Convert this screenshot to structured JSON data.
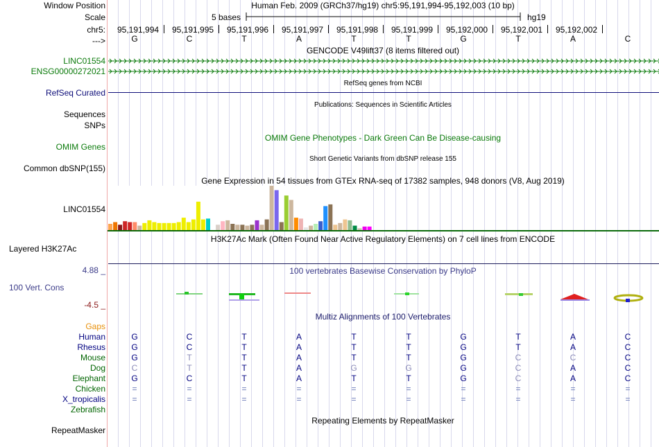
{
  "header": {
    "window_position_label": "Window Position",
    "scale_label": "Scale",
    "chrom_label": "chr5:",
    "strand_label": "--->",
    "title": "Human Feb. 2009 (GRCh37/hg19)   chr5:95,191,994-95,192,003 (10 bp)",
    "scale_text": "5 bases",
    "assembly": "hg19",
    "positions": [
      "95,191,994",
      "95,191,995",
      "95,191,996",
      "95,191,997",
      "95,191,998",
      "95,191,999",
      "95,192,000",
      "95,192,001",
      "95,192,002"
    ],
    "sequence": [
      "G",
      "C",
      "T",
      "A",
      "T",
      "T",
      "G",
      "T",
      "A",
      "C"
    ]
  },
  "tracks": {
    "gencode": {
      "title": "GENCODE V49lift37 (8 items filtered out)",
      "items": [
        "LINC01554",
        "ENSG00000272021"
      ]
    },
    "refseq": {
      "label": "RefSeq Curated",
      "title": "RefSeq genes from NCBI"
    },
    "publications": {
      "label": "Sequences",
      "title": "Publications: Sequences in Scientific Articles"
    },
    "snps_label": "SNPs",
    "omim": {
      "label": "OMIM Genes",
      "title": "OMIM Gene Phenotypes - Dark Green Can Be Disease-causing"
    },
    "dbsnp": {
      "label": "Common dbSNP(155)",
      "title": "Short Genetic Variants from dbSNP release 155"
    },
    "gtex": {
      "label": "LINC01554",
      "title": "Gene Expression in 54 tissues from GTEx RNA-seq of 17382 samples, 948 donors (V8, Aug 2019)"
    },
    "h3k27ac": {
      "label": "Layered H3K27Ac",
      "title": "H3K27Ac Mark (Often Found Near Active Regulatory Elements) on 7 cell lines from ENCODE"
    },
    "phylop": {
      "label": "100 Vert. Cons",
      "title": "100 vertebrates Basewise Conservation by PhyloP",
      "max": "4.88 _",
      "min": "-4.5 _"
    },
    "multiz": {
      "title": "Multiz Alignments of 100 Vertebrates",
      "gaps_label": "Gaps"
    },
    "repeatmasker": {
      "label": "RepeatMasker",
      "title": "Repeating Elements by RepeatMasker"
    }
  },
  "species": [
    {
      "name": "Human",
      "color": "#000080",
      "bases": [
        "G",
        "C",
        "T",
        "A",
        "T",
        "T",
        "G",
        "T",
        "A",
        "C"
      ],
      "faded": [
        0,
        0,
        0,
        0,
        0,
        0,
        0,
        0,
        0,
        0
      ]
    },
    {
      "name": "Rhesus",
      "color": "#000080",
      "bases": [
        "G",
        "C",
        "T",
        "A",
        "T",
        "T",
        "G",
        "T",
        "A",
        "C"
      ],
      "faded": [
        0,
        0,
        0,
        0,
        0,
        0,
        0,
        0,
        0,
        0
      ]
    },
    {
      "name": "Mouse",
      "color": "#006400",
      "bases": [
        "G",
        "T",
        "T",
        "A",
        "T",
        "T",
        "G",
        "C",
        "C",
        "C"
      ],
      "faded": [
        0,
        1,
        0,
        0,
        0,
        0,
        0,
        1,
        1,
        0
      ]
    },
    {
      "name": "Dog",
      "color": "#006400",
      "bases": [
        "C",
        "T",
        "T",
        "A",
        "G",
        "G",
        "G",
        "C",
        "A",
        "C"
      ],
      "faded": [
        1,
        1,
        0,
        0,
        1,
        1,
        0,
        1,
        0,
        0
      ]
    },
    {
      "name": "Elephant",
      "color": "#006400",
      "bases": [
        "G",
        "C",
        "T",
        "A",
        "T",
        "T",
        "G",
        "C",
        "A",
        "C"
      ],
      "faded": [
        0,
        0,
        0,
        0,
        0,
        0,
        0,
        1,
        0,
        0
      ]
    },
    {
      "name": "Chicken",
      "color": "#006400",
      "bases": [
        "=",
        "=",
        "=",
        "=",
        "=",
        "=",
        "=",
        "=",
        "=",
        "="
      ],
      "faded": [
        2,
        2,
        2,
        2,
        2,
        2,
        2,
        2,
        2,
        2
      ]
    },
    {
      "name": "X_tropicalis",
      "color": "#000080",
      "bases": [
        "=",
        "=",
        "=",
        "=",
        "=",
        "=",
        "=",
        "=",
        "=",
        "="
      ],
      "faded": [
        2,
        2,
        2,
        2,
        2,
        2,
        2,
        2,
        2,
        2
      ]
    },
    {
      "name": "Zebrafish",
      "color": "#006400",
      "bases": [],
      "faded": []
    }
  ],
  "gtex_values": [
    0.14,
    0.18,
    0.12,
    0.2,
    0.18,
    0.18,
    0.1,
    0.16,
    0.22,
    0.18,
    0.16,
    0.16,
    0.16,
    0.16,
    0.18,
    0.28,
    0.18,
    0.24,
    0.64,
    0.24,
    0.26,
    0.06,
    0.12,
    0.2,
    0.22,
    0.14,
    0.12,
    0.12,
    0.1,
    0.12,
    0.22,
    0.12,
    0.24,
    1.0,
    0.9,
    0.18,
    0.78,
    0.68,
    0.28,
    0.26,
    0.06,
    0.1,
    0.14,
    0.2,
    0.54,
    0.58,
    0.12,
    0.16,
    0.24,
    0.22,
    0.1,
    0.04,
    0.08,
    0.08
  ],
  "gtex_colors": [
    "#FFA54F",
    "#EE7600",
    "#8B1A1A",
    "#CD2626",
    "#CD2626",
    "#FF8C69",
    "#CDB79E",
    "#EEEE00",
    "#EEEE00",
    "#EEEE00",
    "#EEEE00",
    "#EEEE00",
    "#EEEE00",
    "#EEEE00",
    "#EEEE00",
    "#EEEE00",
    "#EEEE00",
    "#EEEE00",
    "#EEEE00",
    "#EEEE00",
    "#00CDCD",
    "#FFFFFF",
    "#D9CFC9",
    "#FFB6C1",
    "#CDB79E",
    "#8B7355",
    "#CDB79E",
    "#8B7355",
    "#CDB79E",
    "#8B7355",
    "#9A32CD",
    "#CDB79E",
    "#8B7355",
    "#CDB79E",
    "#7A67EE",
    "#8B7355",
    "#9ACD32",
    "#CDB79E",
    "#FF8C00",
    "#EEB4B4",
    "#E5E5E5",
    "#CDB79E",
    "#B4EEB4",
    "#3A5FCD",
    "#1E90FF",
    "#8B7355",
    "#EEC591",
    "#CDB79E",
    "#EEC591",
    "#8FBC8F",
    "#008B45",
    "#CDC0B0",
    "#EE00EE",
    "#FF00FF"
  ]
}
